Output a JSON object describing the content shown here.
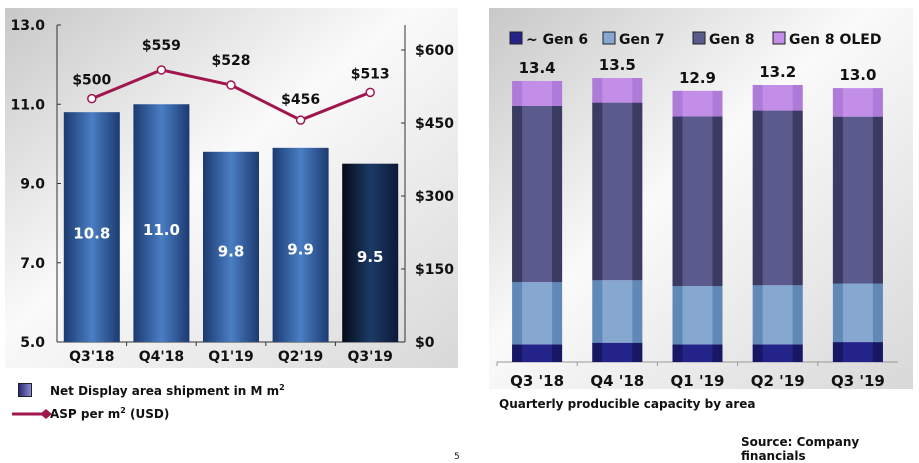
{
  "chart_data": [
    {
      "type": "bar+line",
      "categories": [
        "Q3'18",
        "Q4'18",
        "Q1'19",
        "Q2'19",
        "Q3'19"
      ],
      "series": [
        {
          "name": "Net Display area shipment in M m²",
          "values": [
            10.8,
            11.0,
            9.8,
            9.9,
            9.5
          ],
          "labels": [
            "10.8",
            "11.0",
            "9.8",
            "9.9",
            "9.5"
          ],
          "color": "#2f5a9a"
        },
        {
          "name": "ASP per m² (USD)",
          "values": [
            500,
            559,
            528,
            456,
            513
          ],
          "labels": [
            "$500",
            "$559",
            "$528",
            "$456",
            "$513"
          ],
          "color": "#a0164f",
          "axis": "right"
        }
      ],
      "ylim": [
        5,
        13
      ],
      "yticks": [
        "5.0",
        "7.0",
        "9.0",
        "11.0",
        "13.0"
      ],
      "ytick_values": [
        5,
        7,
        9,
        11,
        13
      ],
      "y2lim": [
        0,
        675
      ],
      "y2ticks": [
        "$0",
        "$150",
        "$300",
        "$450",
        "$600"
      ],
      "y2tick_values": [
        0,
        150,
        300,
        450,
        600
      ],
      "legend": [
        "Net Display area shipment in M m",
        "ASP per m",
        "(USD)"
      ],
      "legend_sup": "2",
      "legend_placement": "bottom-left"
    },
    {
      "type": "stacked-bar",
      "title": "Quarterly producible capacity by area",
      "categories": [
        "Q3 '18",
        "Q4 '18",
        "Q1 '19",
        "Q2 '19",
        "Q3 '19"
      ],
      "series": [
        {
          "name": "~ Gen 6",
          "values": [
            0.84,
            0.92,
            0.84,
            0.84,
            0.95
          ],
          "color": "#23238a"
        },
        {
          "name": "Gen 7",
          "values": [
            2.97,
            2.98,
            2.78,
            2.82,
            2.79
          ],
          "color": "#86a8d0"
        },
        {
          "name": "Gen 8",
          "values": [
            8.4,
            8.47,
            8.09,
            8.33,
            7.96
          ],
          "color": "#5a5a8c"
        },
        {
          "name": "Gen 8 OLED",
          "values": [
            1.19,
            1.17,
            1.22,
            1.22,
            1.36
          ],
          "color": "#c28ee8"
        }
      ],
      "totals": [
        "13.4",
        "13.5",
        "12.9",
        "13.2",
        "13.0"
      ],
      "ylim": [
        0,
        15
      ],
      "legend_placement": "top"
    }
  ],
  "source": "Source: Company financials",
  "page_number": "5"
}
